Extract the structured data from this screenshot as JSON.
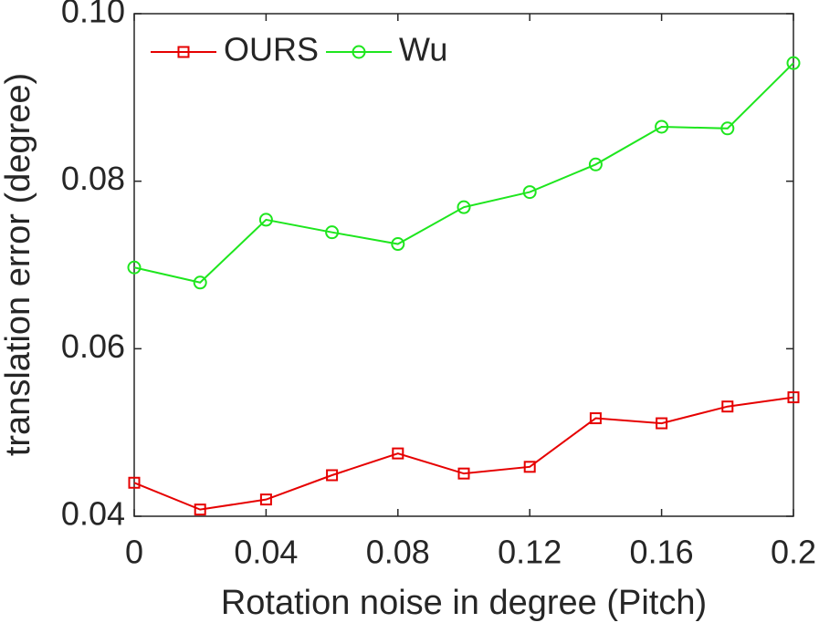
{
  "chart_data": {
    "type": "line",
    "xlabel": "Rotation noise in degree (Pitch)",
    "ylabel": "translation error (degree)",
    "x": [
      0,
      0.02,
      0.04,
      0.06,
      0.08,
      0.1,
      0.12,
      0.14,
      0.16,
      0.18,
      0.2
    ],
    "series": [
      {
        "name": "OURS",
        "color": "#e60000",
        "marker": "square",
        "values": [
          0.044,
          0.0408,
          0.042,
          0.0449,
          0.0475,
          0.0451,
          0.0459,
          0.0517,
          0.0511,
          0.0531,
          0.0542
        ]
      },
      {
        "name": "Wu",
        "color": "#1ee61e",
        "marker": "circle",
        "values": [
          0.0697,
          0.0679,
          0.0754,
          0.0739,
          0.0725,
          0.0769,
          0.0787,
          0.082,
          0.0865,
          0.0863,
          0.0941
        ]
      }
    ],
    "xlim": [
      0,
      0.2
    ],
    "xticks": [
      0,
      0.04,
      0.08,
      0.12,
      0.16,
      0.2
    ],
    "ylim": [
      0.04,
      0.1
    ],
    "yticks": [
      0.04,
      0.06,
      0.08,
      {
        "value": 0.1,
        "label": "0.10"
      }
    ],
    "legend": "top-left",
    "grid": false
  }
}
